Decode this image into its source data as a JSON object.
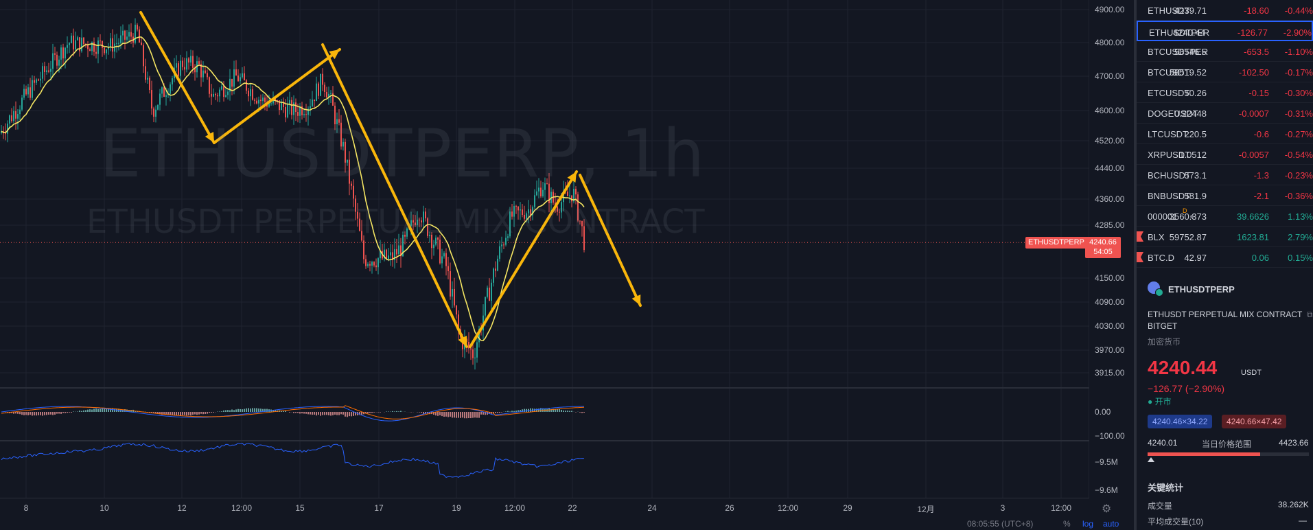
{
  "chart": {
    "watermark_title": "ETHUSDTPERP, 1h",
    "watermark_subtitle": "ETHUSDT PERPETUAL MIX CONTRACT",
    "price_ticks": [
      "4900.00",
      "4800.00",
      "4700.00",
      "4600.00",
      "4520.00",
      "4440.00",
      "4360.00",
      "4285.00",
      "4150.00",
      "4090.00",
      "4030.00",
      "3970.00",
      "3915.00"
    ],
    "macd_ticks": [
      "0.00",
      "−100.00"
    ],
    "volume_ticks": [
      "−9.5M",
      "−9.6M"
    ],
    "time_ticks": [
      "8",
      "10",
      "12",
      "12:00",
      "15",
      "17",
      "19",
      "12:00",
      "22",
      "24",
      "26",
      "12:00",
      "29",
      "12月",
      "3",
      "12:00"
    ],
    "symbol_tag": "ETHUSDTPERP",
    "last_price_tag": "4240.66",
    "countdown": "54:05",
    "clock": "08:05:55 (UTC+8)",
    "percent_toggle": "%",
    "log_toggle": "log",
    "auto_toggle": "auto",
    "colors": {
      "up": "#26a69a",
      "down": "#ef5350",
      "ma": "#f5e663",
      "arrow": "#f9b60b",
      "macd": "#2962ff",
      "signal": "#ff6d00"
    }
  },
  "chart_data": {
    "type": "candlestick",
    "title": "ETHUSDTPERP, 1h",
    "ylim": [
      3880,
      4930
    ],
    "x_ticks": [
      "8",
      "10",
      "12",
      "12:00",
      "15",
      "17",
      "19",
      "12:00",
      "22",
      "24",
      "26",
      "12:00",
      "29",
      "12月",
      "3",
      "12:00"
    ],
    "y_ticks": [
      4900,
      4800,
      4700,
      4600,
      4520,
      4440,
      4360,
      4285,
      4150,
      4090,
      4030,
      3970,
      3915
    ],
    "last_price": 4240.66,
    "trend_arrows_price_path": [
      4890,
      4510,
      4790,
      4440,
      3960,
      4430,
      4060
    ]
  },
  "watchlist": [
    {
      "symbol": "ETHUSDT",
      "last": "4239.71",
      "change": "-18.60",
      "pct": "-0.44%",
      "dir": "neg"
    },
    {
      "symbol": "ETHUSDTPERP",
      "last": "4240.44",
      "change": "-126.77",
      "pct": "-2.90%",
      "dir": "neg",
      "selected": true
    },
    {
      "symbol": "BTCUSDTPERP",
      "last": "58546.5",
      "change": "-653.5",
      "pct": "-1.10%",
      "dir": "neg"
    },
    {
      "symbol": "BTCUSDT",
      "last": "58519.52",
      "change": "-102.50",
      "pct": "-0.17%",
      "dir": "neg"
    },
    {
      "symbol": "ETCUSDT",
      "last": "50.26",
      "change": "-0.15",
      "pct": "-0.30%",
      "dir": "neg"
    },
    {
      "symbol": "DOGEUSDT",
      "last": "0.22448",
      "change": "-0.0007",
      "pct": "-0.31%",
      "dir": "neg"
    },
    {
      "symbol": "LTCUSDT",
      "last": "220.5",
      "change": "-0.6",
      "pct": "-0.27%",
      "dir": "neg"
    },
    {
      "symbol": "XRPUSDT",
      "last": "1.0512",
      "change": "-0.0057",
      "pct": "-0.54%",
      "dir": "neg"
    },
    {
      "symbol": "BCHUSDT",
      "last": "573.1",
      "change": "-1.3",
      "pct": "-0.23%",
      "dir": "neg"
    },
    {
      "symbol": "BNBUSDT",
      "last": "581.9",
      "change": "-2.1",
      "pct": "-0.36%",
      "dir": "neg"
    },
    {
      "symbol": "000001",
      "last": "3560.373",
      "change": "39.6626",
      "pct": "1.13%",
      "dir": "pos",
      "badge": "D"
    },
    {
      "symbol": "BLX",
      "last": "59752.87",
      "change": "1623.81",
      "pct": "2.79%",
      "dir": "pos",
      "flag": true
    },
    {
      "symbol": "BTC.D",
      "last": "42.97",
      "change": "0.06",
      "pct": "0.15%",
      "dir": "pos",
      "flag": true
    }
  ],
  "details": {
    "symbol": "ETHUSDTPERP",
    "description": "ETHUSDT PERPETUAL MIX CONTRACT",
    "exchange": "BITGET",
    "category": "加密货币",
    "price": "4240.44",
    "currency": "USDT",
    "change": "−126.77 (−2.90%)",
    "status": "开市",
    "bid": "4240.46×34.22",
    "ask": "4240.66×47.42",
    "range_low": "4240.01",
    "range_label": "当日价格范围",
    "range_high": "4423.66",
    "range_fraction": 0.0,
    "stats_title": "关键统计",
    "volume_label": "成交量",
    "volume_value": "38.262K",
    "avg_volume_label": "平均成交量(10)",
    "avg_volume_value": "—"
  }
}
